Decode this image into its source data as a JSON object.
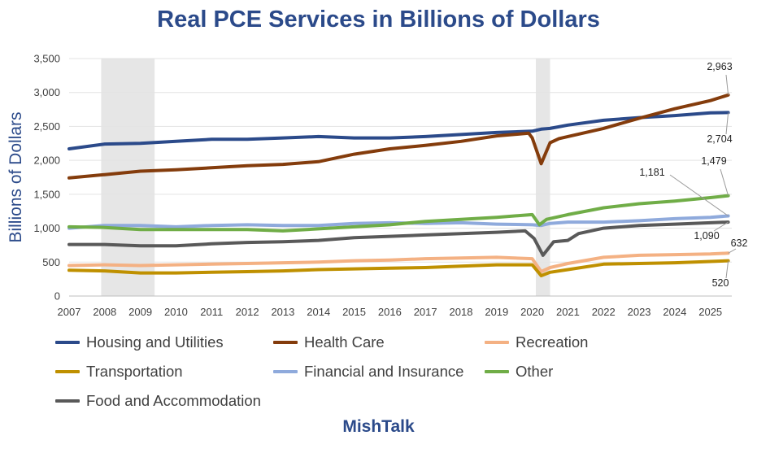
{
  "chart_data": {
    "type": "line",
    "title": "Real PCE Services in Billions of Dollars",
    "ylabel": "Billions of Dollars",
    "xlabel": "",
    "brand": "MishTalk",
    "ylim": [
      0,
      3500
    ],
    "yticks": [
      "0",
      "500",
      "1,000",
      "1,500",
      "2,000",
      "2,500",
      "3,000",
      "3,500"
    ],
    "xlim": [
      2007.0,
      2025.6
    ],
    "xticks": [
      "2007",
      "2008",
      "2009",
      "2010",
      "2011",
      "2012",
      "2013",
      "2014",
      "2015",
      "2016",
      "2017",
      "2018",
      "2019",
      "2020",
      "2021",
      "2022",
      "2023",
      "2024",
      "2025"
    ],
    "recessions": [
      [
        2007.9,
        2009.4
      ],
      [
        2020.1,
        2020.5
      ]
    ],
    "series": [
      {
        "name": "Housing and Utilities",
        "color": "#2b4a8a",
        "x": [
          2007,
          2008,
          2009,
          2010,
          2011,
          2012,
          2013,
          2014,
          2015,
          2016,
          2017,
          2018,
          2019,
          2020,
          2020.25,
          2020.5,
          2021,
          2022,
          2023,
          2024,
          2025,
          2025.5
        ],
        "values": [
          2170,
          2240,
          2250,
          2280,
          2310,
          2310,
          2330,
          2350,
          2330,
          2330,
          2350,
          2380,
          2410,
          2430,
          2460,
          2470,
          2520,
          2590,
          2630,
          2660,
          2700,
          2704
        ]
      },
      {
        "name": "Health Care",
        "color": "#843c0c",
        "x": [
          2007,
          2008,
          2009,
          2010,
          2011,
          2012,
          2013,
          2014,
          2015,
          2016,
          2017,
          2018,
          2019,
          2019.9,
          2020,
          2020.25,
          2020.5,
          2020.75,
          2021,
          2022,
          2023,
          2024,
          2025,
          2025.5
        ],
        "values": [
          1740,
          1790,
          1840,
          1860,
          1890,
          1920,
          1940,
          1980,
          2090,
          2170,
          2220,
          2280,
          2360,
          2400,
          2330,
          1950,
          2260,
          2320,
          2350,
          2470,
          2620,
          2760,
          2880,
          2963
        ]
      },
      {
        "name": "Recreation",
        "color": "#f4b183",
        "x": [
          2007,
          2008,
          2009,
          2010,
          2011,
          2012,
          2013,
          2014,
          2015,
          2016,
          2017,
          2018,
          2019,
          2020,
          2020.25,
          2020.5,
          2021,
          2022,
          2023,
          2024,
          2025,
          2025.5
        ],
        "values": [
          450,
          460,
          450,
          460,
          470,
          480,
          490,
          500,
          520,
          530,
          550,
          560,
          570,
          550,
          360,
          420,
          480,
          570,
          600,
          610,
          620,
          632
        ]
      },
      {
        "name": "Transportation",
        "color": "#bf9000",
        "x": [
          2007,
          2008,
          2009,
          2010,
          2011,
          2012,
          2013,
          2014,
          2015,
          2016,
          2017,
          2018,
          2019,
          2020,
          2020.25,
          2020.5,
          2021,
          2022,
          2023,
          2024,
          2025,
          2025.5
        ],
        "values": [
          380,
          370,
          340,
          340,
          350,
          360,
          370,
          390,
          400,
          410,
          420,
          440,
          460,
          460,
          300,
          350,
          390,
          470,
          480,
          490,
          510,
          520
        ]
      },
      {
        "name": "Financial and Insurance",
        "color": "#8faadc",
        "x": [
          2007,
          2008,
          2009,
          2010,
          2011,
          2012,
          2013,
          2014,
          2015,
          2016,
          2017,
          2018,
          2019,
          2020,
          2020.25,
          2020.5,
          2021,
          2022,
          2023,
          2024,
          2025,
          2025.5
        ],
        "values": [
          1000,
          1040,
          1040,
          1020,
          1040,
          1050,
          1040,
          1040,
          1070,
          1080,
          1070,
          1080,
          1060,
          1050,
          1040,
          1070,
          1090,
          1090,
          1110,
          1140,
          1160,
          1181
        ]
      },
      {
        "name": "Other",
        "color": "#70ad47",
        "x": [
          2007,
          2008,
          2009,
          2010,
          2011,
          2012,
          2013,
          2014,
          2015,
          2016,
          2017,
          2018,
          2019,
          2020,
          2020.2,
          2020.4,
          2021,
          2022,
          2023,
          2024,
          2025,
          2025.5
        ],
        "values": [
          1020,
          1010,
          980,
          980,
          980,
          980,
          960,
          990,
          1020,
          1050,
          1100,
          1130,
          1160,
          1200,
          1050,
          1130,
          1200,
          1300,
          1360,
          1400,
          1450,
          1479
        ]
      },
      {
        "name": "Food and Accommodation",
        "color": "#595959",
        "x": [
          2007,
          2008,
          2009,
          2010,
          2011,
          2012,
          2013,
          2014,
          2015,
          2016,
          2017,
          2018,
          2019,
          2019.8,
          2020.05,
          2020.3,
          2020.6,
          2021,
          2021.3,
          2022,
          2023,
          2024,
          2025,
          2025.5
        ],
        "values": [
          760,
          760,
          740,
          740,
          770,
          790,
          800,
          820,
          860,
          880,
          900,
          920,
          940,
          960,
          850,
          600,
          800,
          820,
          920,
          1000,
          1040,
          1060,
          1080,
          1090
        ]
      }
    ],
    "end_labels": [
      "2,963",
      "2,704",
      "1,479",
      "1,181",
      "1,090",
      "632",
      "520"
    ]
  }
}
